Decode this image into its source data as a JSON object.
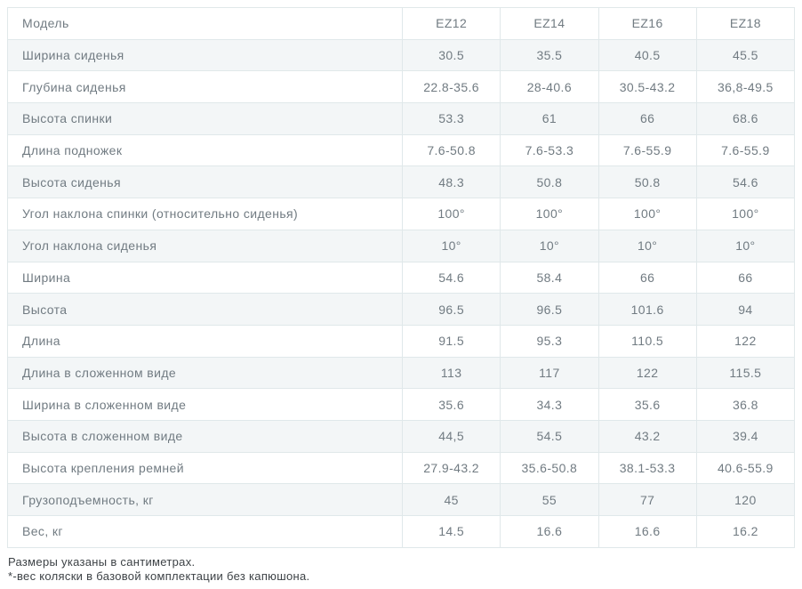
{
  "table": {
    "header": {
      "label": "Модель",
      "models": [
        "EZ12",
        "EZ14",
        "EZ16",
        "EZ18"
      ]
    },
    "rows": [
      {
        "label": "Ширина сиденья",
        "values": [
          "30.5",
          "35.5",
          "40.5",
          "45.5"
        ]
      },
      {
        "label": "Глубина сиденья",
        "values": [
          "22.8-35.6",
          "28-40.6",
          "30.5-43.2",
          "36,8-49.5"
        ]
      },
      {
        "label": "Высота спинки",
        "values": [
          "53.3",
          "61",
          "66",
          "68.6"
        ]
      },
      {
        "label": "Длина подножек",
        "values": [
          "7.6-50.8",
          "7.6-53.3",
          "7.6-55.9",
          "7.6-55.9"
        ]
      },
      {
        "label": "Высота сиденья",
        "values": [
          "48.3",
          "50.8",
          "50.8",
          "54.6"
        ]
      },
      {
        "label": "Угол наклона спинки (относительно сиденья)",
        "values": [
          "100°",
          "100°",
          "100°",
          "100°"
        ]
      },
      {
        "label": "Угол наклона сиденья",
        "values": [
          "10°",
          "10°",
          "10°",
          "10°"
        ]
      },
      {
        "label": "Ширина",
        "values": [
          "54.6",
          "58.4",
          "66",
          "66"
        ]
      },
      {
        "label": "Высота",
        "values": [
          "96.5",
          "96.5",
          "101.6",
          "94"
        ]
      },
      {
        "label": "Длина",
        "values": [
          "91.5",
          "95.3",
          "110.5",
          "122"
        ]
      },
      {
        "label": "Длина в сложенном виде",
        "values": [
          "113",
          "117",
          "122",
          "115.5"
        ]
      },
      {
        "label": "Ширина в сложенном виде",
        "values": [
          "35.6",
          "34.3",
          "35.6",
          "36.8"
        ]
      },
      {
        "label": "Высота в сложенном виде",
        "values": [
          "44,5",
          "54.5",
          "43.2",
          "39.4"
        ]
      },
      {
        "label": "Высота крепления ремней",
        "values": [
          "27.9-43.2",
          "35.6-50.8",
          "38.1-53.3",
          "40.6-55.9"
        ]
      },
      {
        "label": "Грузоподъемность, кг",
        "values": [
          "45",
          "55",
          "77",
          "120"
        ]
      },
      {
        "label": "Вес, кг",
        "values": [
          "14.5",
          "16.6",
          "16.6",
          "16.2"
        ]
      }
    ]
  },
  "footnotes": {
    "line1": "Размеры указаны в сантиметрах.",
    "line2": "*-вес коляски в базовой комплектации без капюшона."
  },
  "colors": {
    "row_alt_background": "#f3f6f7",
    "border": "#e0e8ea",
    "table_text": "#717b82",
    "footnote_text": "#3d4246"
  }
}
